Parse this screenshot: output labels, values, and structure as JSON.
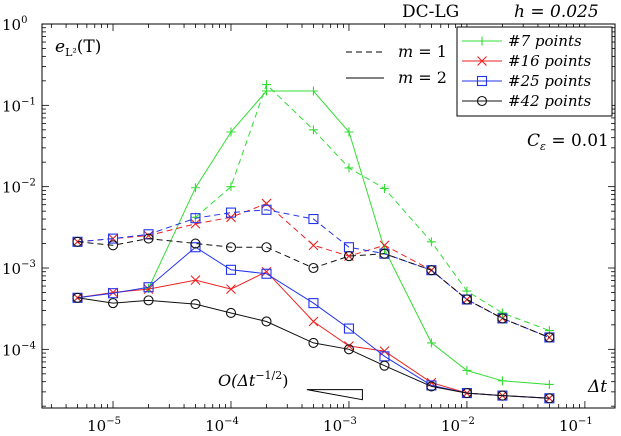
{
  "chart_data": {
    "type": "line",
    "title": "DC-LG",
    "title_param": "h = 0.025",
    "ylabel": "e_{L^2}(T)",
    "ylabel_main": "e",
    "ylabel_sub": "L²",
    "ylabel_tail": "(T)",
    "xlabel": "Δt",
    "x_scale": "log",
    "y_scale": "log",
    "xlim": [
      2.5e-06,
      0.18
    ],
    "ylim": [
      1.9e-05,
      1.0
    ],
    "x_ticks": [
      {
        "value": 1e-05,
        "base": "10",
        "exp": "−5"
      },
      {
        "value": 0.0001,
        "base": "10",
        "exp": "−4"
      },
      {
        "value": 0.001,
        "base": "10",
        "exp": "−3"
      },
      {
        "value": 0.01,
        "base": "10",
        "exp": "−2"
      },
      {
        "value": 0.1,
        "base": "10",
        "exp": "−1"
      }
    ],
    "y_ticks": [
      {
        "value": 0.0001,
        "base": "10",
        "exp": "−4"
      },
      {
        "value": 0.001,
        "base": "10",
        "exp": "−3"
      },
      {
        "value": 0.01,
        "base": "10",
        "exp": "−2"
      },
      {
        "value": 0.1,
        "base": "10",
        "exp": "−1"
      },
      {
        "value": 1,
        "base": "10",
        "exp": "0"
      }
    ],
    "annotations": {
      "c_eps_label": "C_ε = 0.01",
      "c_eps_main": "C",
      "c_eps_sub": "ε",
      "c_eps_tail": " = 0.01",
      "slope_label": "O(Δt^{−1/2})",
      "slope_main": "O(Δt",
      "slope_exp": "−1/2",
      "slope_tail": ")",
      "slope_triangle": [
        [
          0.00044,
          3.2e-05
        ],
        [
          0.0013,
          2.4e-05
        ],
        [
          0.0013,
          3.2e-05
        ]
      ]
    },
    "style_legend": [
      {
        "label_var": "m",
        "label_val": " = 1",
        "dash": "dashed"
      },
      {
        "label_var": "m",
        "label_val": " = 2",
        "dash": "solid"
      }
    ],
    "x": [
      5e-06,
      1e-05,
      2e-05,
      5e-05,
      0.0001,
      0.0002,
      0.0005,
      0.001,
      0.002,
      0.005,
      0.01,
      0.02,
      0.05
    ],
    "series": [
      {
        "name": "#7 points",
        "marker": "plus",
        "color": "#33dd33",
        "m1": [
          null,
          null,
          null,
          0.0042,
          0.01,
          0.18,
          0.05,
          0.017,
          0.0095,
          0.0021,
          0.00052,
          0.00028,
          0.00017
        ],
        "m2": [
          null,
          null,
          0.00056,
          0.0097,
          0.047,
          0.15,
          0.15,
          0.047,
          0.0017,
          0.00012,
          5.5e-05,
          4.1e-05,
          3.7e-05
        ]
      },
      {
        "name": "#16 points",
        "marker": "x",
        "color": "#ee2222",
        "m1": [
          0.0021,
          0.0023,
          0.0025,
          0.0035,
          0.0042,
          0.0062,
          0.0019,
          0.0014,
          0.0019,
          0.00094,
          0.00041,
          0.00024,
          0.00014
        ],
        "m2": [
          0.00043,
          0.0005,
          0.00055,
          0.00071,
          0.00055,
          0.0009,
          0.00022,
          0.00011,
          9.5e-05,
          3.9e-05,
          2.9e-05,
          2.7e-05,
          2.5e-05
        ]
      },
      {
        "name": "#25 points",
        "marker": "square",
        "color": "#2233ee",
        "m1": [
          0.0021,
          0.0023,
          0.0026,
          0.0041,
          0.0048,
          0.0052,
          0.004,
          0.0018,
          0.0015,
          0.00094,
          0.00041,
          0.00024,
          0.00014
        ],
        "m2": [
          0.00043,
          0.00049,
          0.00058,
          0.0018,
          0.00095,
          0.00085,
          0.00037,
          0.00018,
          8.2e-05,
          3.6e-05,
          2.9e-05,
          2.7e-05,
          2.5e-05
        ]
      },
      {
        "name": "#42 points",
        "marker": "circle",
        "color": "#111111",
        "m1": [
          0.0021,
          0.0019,
          0.0023,
          0.002,
          0.0018,
          0.0018,
          0.001,
          0.0014,
          0.0015,
          0.00094,
          0.00041,
          0.00024,
          0.00014
        ],
        "m2": [
          0.00043,
          0.00037,
          0.0004,
          0.00036,
          0.00028,
          0.00022,
          0.00012,
          0.0001,
          6.3e-05,
          3.5e-05,
          2.9e-05,
          2.7e-05,
          2.5e-05
        ]
      }
    ]
  }
}
